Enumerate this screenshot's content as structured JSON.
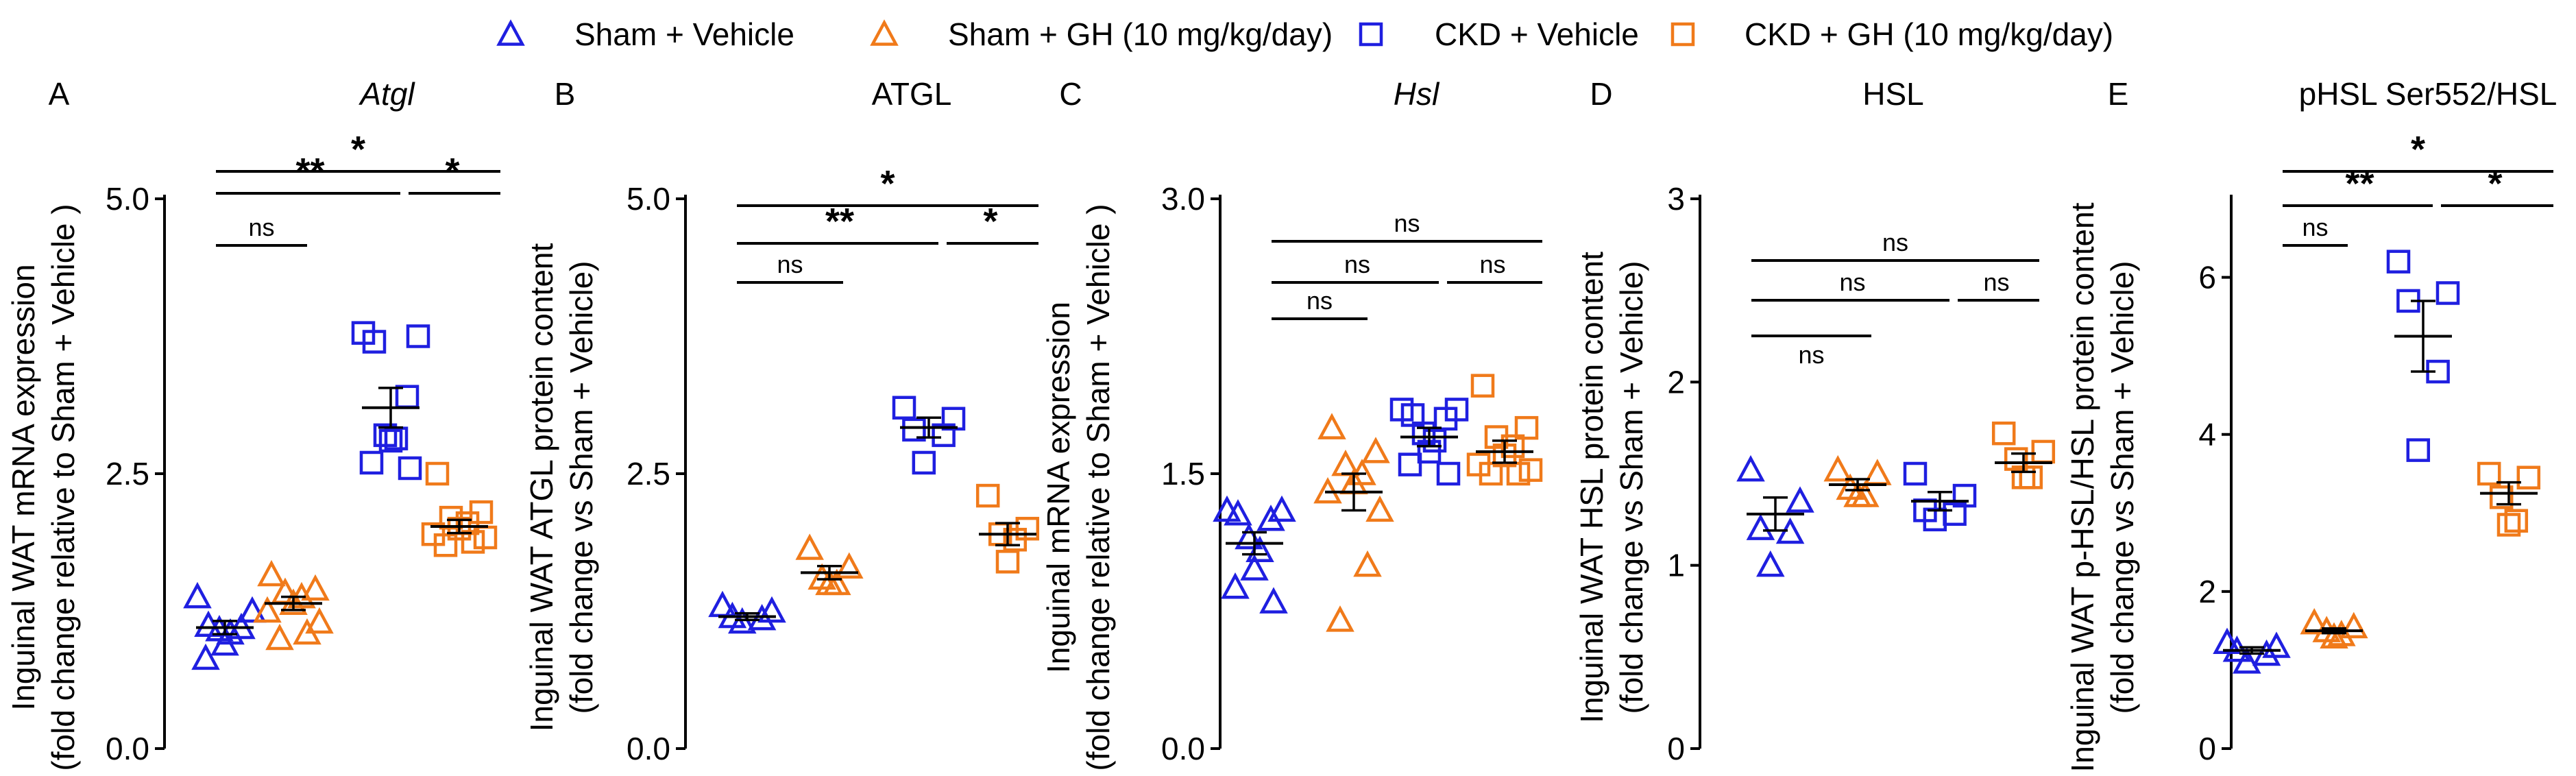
{
  "legend": [
    {
      "label": "Sham + Vehicle",
      "marker": "triangle",
      "color": "#1f1fe0"
    },
    {
      "label": "Sham + GH (10 mg/kg/day)",
      "marker": "triangle",
      "color": "#f07a1a"
    },
    {
      "label": "CKD + Vehicle",
      "marker": "square",
      "color": "#1f1fe0"
    },
    {
      "label": "CKD + GH (10 mg/kg/day)",
      "marker": "square",
      "color": "#f07a1a"
    }
  ],
  "chart_data": [
    {
      "type": "scatter",
      "panel": "A",
      "title": "Atgl",
      "title_italic": true,
      "ylabel_lines": [
        "Inguinal WAT mRNA expression",
        "(fold change relative to Sham + Vehicle )"
      ],
      "ylim": [
        0,
        5.0
      ],
      "yticks": [
        0.0,
        2.5,
        5.0
      ],
      "ytick_labels": [
        "0.0",
        "2.5",
        "5.0"
      ],
      "groups": [
        {
          "name": "Sham + Vehicle",
          "values": [
            1.38,
            1.25,
            1.12,
            1.1,
            1.08,
            1.05,
            0.95,
            0.82
          ],
          "mean": 1.1,
          "sem": 0.06
        },
        {
          "name": "Sham + GH (10 mg/kg/day)",
          "values": [
            1.58,
            1.45,
            1.42,
            1.38,
            1.32,
            1.25,
            1.15,
            1.05,
            1.0
          ],
          "mean": 1.32,
          "sem": 0.06
        },
        {
          "name": "CKD + Vehicle",
          "values": [
            3.78,
            3.75,
            3.7,
            3.2,
            2.85,
            2.82,
            2.8,
            2.6,
            2.55
          ],
          "mean": 3.1,
          "sem": 0.18
        },
        {
          "name": "CKD + GH (10 mg/kg/day)",
          "values": [
            2.5,
            2.15,
            2.1,
            2.05,
            2.0,
            1.95,
            1.92,
            1.88,
            1.85
          ],
          "mean": 2.02,
          "sem": 0.06
        }
      ],
      "significance": [
        {
          "from": 0,
          "to": 3,
          "label": "*"
        },
        {
          "from": 0,
          "to": 2,
          "label": "**"
        },
        {
          "from": 2,
          "to": 3,
          "label": "*"
        },
        {
          "from": 0,
          "to": 1,
          "label": "ns"
        }
      ]
    },
    {
      "type": "scatter",
      "panel": "B",
      "title": "ATGL",
      "title_italic": false,
      "ylabel_lines": [
        "Inguinal WAT ATGL protein content",
        "(fold change vs Sham + Vehicle)"
      ],
      "ylim": [
        0,
        5.0
      ],
      "yticks": [
        0.0,
        2.5,
        5.0
      ],
      "ytick_labels": [
        "0.0",
        "2.5",
        "5.0"
      ],
      "groups": [
        {
          "name": "Sham + Vehicle",
          "values": [
            1.3,
            1.25,
            1.2,
            1.18,
            1.15
          ],
          "mean": 1.2,
          "sem": 0.03
        },
        {
          "name": "Sham + GH (10 mg/kg/day)",
          "values": [
            1.82,
            1.65,
            1.55,
            1.5,
            1.5
          ],
          "mean": 1.6,
          "sem": 0.06
        },
        {
          "name": "CKD + Vehicle",
          "values": [
            3.1,
            3.0,
            2.9,
            2.85,
            2.6
          ],
          "mean": 2.92,
          "sem": 0.09
        },
        {
          "name": "CKD + GH (10 mg/kg/day)",
          "values": [
            2.3,
            2.0,
            1.95,
            1.9,
            1.7
          ],
          "mean": 1.95,
          "sem": 0.1
        }
      ],
      "significance": [
        {
          "from": 0,
          "to": 3,
          "label": "*"
        },
        {
          "from": 0,
          "to": 2,
          "label": "**"
        },
        {
          "from": 2,
          "to": 3,
          "label": "*"
        },
        {
          "from": 0,
          "to": 1,
          "label": "ns"
        }
      ]
    },
    {
      "type": "scatter",
      "panel": "C",
      "title": "Hsl",
      "title_italic": true,
      "ylabel_lines": [
        "Inguinal mRNA expression",
        "(fold change relative to Sham + Vehicle )"
      ],
      "ylim": [
        0,
        3.0
      ],
      "yticks": [
        0.0,
        1.5,
        3.0
      ],
      "ytick_labels": [
        "0.0",
        "1.5",
        "3.0"
      ],
      "groups": [
        {
          "name": "Sham + Vehicle",
          "values": [
            1.3,
            1.3,
            1.28,
            1.25,
            1.15,
            1.08,
            0.98,
            0.88,
            0.8
          ],
          "mean": 1.12,
          "sem": 0.06
        },
        {
          "name": "Sham + GH (10 mg/kg/day)",
          "values": [
            1.75,
            1.62,
            1.55,
            1.5,
            1.45,
            1.4,
            1.3,
            1.0,
            0.7
          ],
          "mean": 1.4,
          "sem": 0.1
        },
        {
          "name": "CKD + Vehicle",
          "values": [
            1.85,
            1.85,
            1.82,
            1.8,
            1.72,
            1.68,
            1.62,
            1.55,
            1.5
          ],
          "mean": 1.7,
          "sem": 0.05
        },
        {
          "name": "CKD + GH (10 mg/kg/day)",
          "values": [
            1.98,
            1.75,
            1.7,
            1.65,
            1.6,
            1.55,
            1.52,
            1.5,
            1.5
          ],
          "mean": 1.62,
          "sem": 0.06
        }
      ],
      "significance": [
        {
          "from": 0,
          "to": 3,
          "label": "ns"
        },
        {
          "from": 0,
          "to": 2,
          "label": "ns"
        },
        {
          "from": 2,
          "to": 3,
          "label": "ns"
        },
        {
          "from": 0,
          "to": 1,
          "label": "ns"
        }
      ]
    },
    {
      "type": "scatter",
      "panel": "D",
      "title": "HSL",
      "title_italic": false,
      "ylabel_lines": [
        "Inguinal WAT HSL protein content",
        "(fold change vs Sham + Vehicle)"
      ],
      "ylim": [
        0,
        3
      ],
      "yticks": [
        0,
        1,
        2,
        3
      ],
      "ytick_labels": [
        "0",
        "1",
        "2",
        "3"
      ],
      "groups": [
        {
          "name": "Sham + Vehicle",
          "values": [
            1.52,
            1.35,
            1.2,
            1.18,
            1.0
          ],
          "mean": 1.28,
          "sem": 0.09
        },
        {
          "name": "Sham + GH (10 mg/kg/day)",
          "values": [
            1.52,
            1.5,
            1.42,
            1.38,
            1.38
          ],
          "mean": 1.44,
          "sem": 0.03
        },
        {
          "name": "CKD + Vehicle",
          "values": [
            1.5,
            1.38,
            1.3,
            1.28,
            1.25
          ],
          "mean": 1.35,
          "sem": 0.05
        },
        {
          "name": "CKD + GH (10 mg/kg/day)",
          "values": [
            1.72,
            1.62,
            1.58,
            1.48,
            1.48
          ],
          "mean": 1.56,
          "sem": 0.05
        }
      ],
      "significance": [
        {
          "from": 0,
          "to": 3,
          "label": "ns"
        },
        {
          "from": 0,
          "to": 2,
          "label": "ns"
        },
        {
          "from": 2,
          "to": 3,
          "label": "ns"
        },
        {
          "from": 0,
          "to": 1,
          "label": "ns"
        }
      ]
    },
    {
      "type": "scatter",
      "panel": "E",
      "title": "pHSL Ser552/HSL",
      "title_italic": false,
      "ylabel_lines": [
        "Inguinal WAT p-HSL/HSL protein content",
        "(fold change vs Sham + Vehicle)"
      ],
      "ylim": [
        0,
        7
      ],
      "yticks": [
        0,
        2,
        4,
        6
      ],
      "ytick_labels": [
        "0",
        "2",
        "4",
        "6"
      ],
      "groups": [
        {
          "name": "Sham + Vehicle",
          "values": [
            1.35,
            1.3,
            1.25,
            1.2,
            1.1
          ],
          "mean": 1.25,
          "sem": 0.04
        },
        {
          "name": "Sham + GH (10 mg/kg/day)",
          "values": [
            1.6,
            1.55,
            1.5,
            1.45,
            1.42
          ],
          "mean": 1.5,
          "sem": 0.03
        },
        {
          "name": "CKD + Vehicle",
          "values": [
            6.2,
            5.8,
            5.7,
            4.8,
            3.8
          ],
          "mean": 5.25,
          "sem": 0.45
        },
        {
          "name": "CKD + GH (10 mg/kg/day)",
          "values": [
            3.5,
            3.45,
            3.2,
            2.9,
            2.85
          ],
          "mean": 3.25,
          "sem": 0.14
        }
      ],
      "significance": [
        {
          "from": 0,
          "to": 3,
          "label": "*"
        },
        {
          "from": 0,
          "to": 2,
          "label": "**"
        },
        {
          "from": 2,
          "to": 3,
          "label": "*"
        },
        {
          "from": 0,
          "to": 1,
          "label": "ns"
        }
      ]
    }
  ]
}
